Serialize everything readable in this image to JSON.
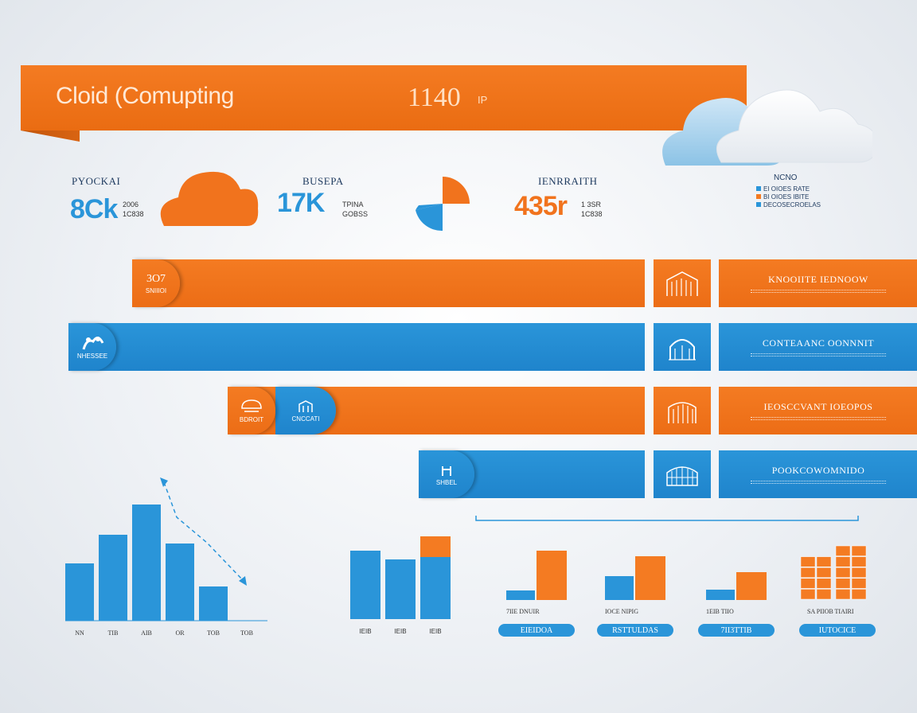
{
  "header": {
    "title": "Cloid (Comupting",
    "big_number": "1140",
    "unit": "IP"
  },
  "kpis": [
    {
      "label": "PYOCKAI",
      "value": "8Ck",
      "sub1": "2006",
      "sub2": "1C838"
    },
    {
      "label": "BUSEPA",
      "value": "17K",
      "sub1": "TPINA",
      "sub2": "GOBSS"
    },
    {
      "label": "IENRRAITH",
      "value": "435r",
      "sub1": "1 3SR",
      "sub2": "1C838"
    }
  ],
  "legend": {
    "title": "NCNO",
    "items": [
      {
        "text": "EI OIOES RATE",
        "color": "#2a95d9"
      },
      {
        "text": "BI OIOES IBITE",
        "color": "#f47b22"
      },
      {
        "text": "DECOSECROELAS",
        "color": "#2a95d9"
      }
    ]
  },
  "bands": [
    {
      "cap": "3O7",
      "cap_sub": "SNIIIOI",
      "label": "KNOOIITE IEDNOOW",
      "color": "orange"
    },
    {
      "cap": "",
      "cap_sub": "NHESSEE",
      "label": "CONTEAANC OONNNIT",
      "color": "blue"
    },
    {
      "cap": "",
      "cap_sub": "BDROIT",
      "cap2_sub": "CNCCATI",
      "label": "IEOSCCVANT IOEOPOS",
      "color": "orange"
    },
    {
      "cap": "",
      "cap_sub": "SHBEL",
      "label": "POOKCOWOMNIDO",
      "color": "blue"
    }
  ],
  "chart_data": [
    {
      "type": "bar",
      "categories": [
        "NN",
        "TIB",
        "AIB",
        "OR",
        "TOB",
        "TOB"
      ],
      "values": [
        72,
        108,
        146,
        97,
        43,
        0
      ],
      "colors": [
        "#2a95d9",
        "#2a95d9",
        "#2a95d9",
        "#2a95d9",
        "#2a95d9",
        "#2a95d9"
      ],
      "annotation": "trend-arrow-down"
    },
    {
      "type": "bar",
      "categories": [
        "IEIB",
        "IEIB",
        "IEIB"
      ],
      "series": [
        {
          "values": [
            86,
            75,
            78
          ],
          "color": "#2a95d9"
        },
        {
          "values": [
            0,
            0,
            26
          ],
          "color": "#f47b22"
        }
      ]
    },
    {
      "type": "bar",
      "groups": [
        {
          "label": "7IIE DNUIR",
          "pill": "EIEIDOA",
          "blue": 12,
          "orange": 62
        },
        {
          "label": "IOCE NIPIG",
          "pill": "RSTTULDAS",
          "blue": 30,
          "orange": 55
        },
        {
          "label": "1EIB TIIO",
          "pill": "7II3TTIB",
          "blue": 13,
          "orange": 35
        },
        {
          "label": "SA PIIOB TIAIRI",
          "pill": "IUTOCICE",
          "blue": 0,
          "orange": 68
        }
      ]
    }
  ],
  "colors": {
    "orange": "#f47b22",
    "blue": "#2a95d9"
  }
}
